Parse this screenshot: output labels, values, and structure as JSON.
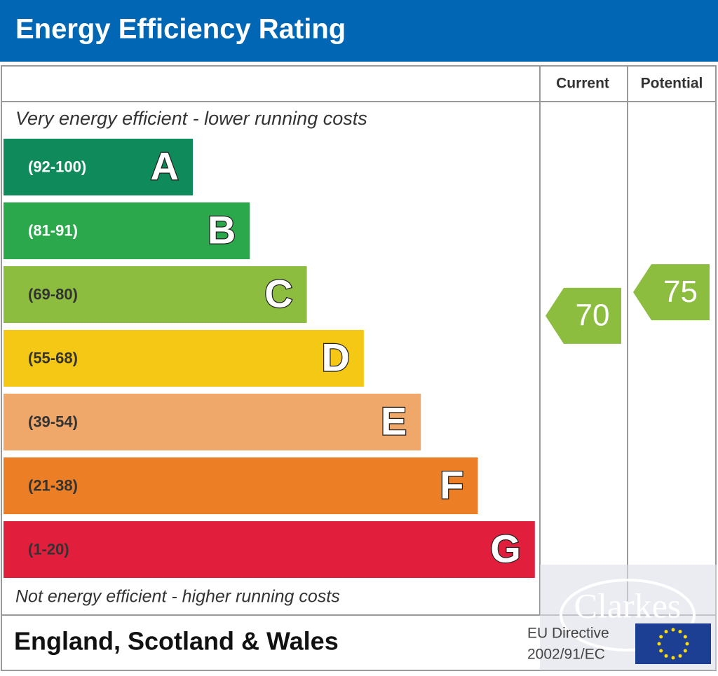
{
  "chart_data": {
    "type": "epc",
    "title": "Energy Efficiency Rating",
    "columns": [
      "Current",
      "Potential"
    ],
    "top_note": "Very energy efficient - lower running costs",
    "bottom_note": "Not energy efficient - higher running costs",
    "bands": [
      {
        "range": "(92-100)",
        "letter": "A",
        "color": "#0f8a5a"
      },
      {
        "range": "(81-91)",
        "letter": "B",
        "color": "#2ba84c"
      },
      {
        "range": "(69-80)",
        "letter": "C",
        "color": "#8cbd3f"
      },
      {
        "range": "(55-68)",
        "letter": "D",
        "color": "#f5c816"
      },
      {
        "range": "(39-54)",
        "letter": "E",
        "color": "#f0a86a"
      },
      {
        "range": "(21-38)",
        "letter": "F",
        "color": "#ec7f26"
      },
      {
        "range": "(1-20)",
        "letter": "G",
        "color": "#e21e3d"
      }
    ],
    "current": 70,
    "potential": 75,
    "region": "England, Scotland & Wales",
    "directive": [
      "EU Directive",
      "2002/91/EC"
    ],
    "watermark": "Clarkes"
  }
}
